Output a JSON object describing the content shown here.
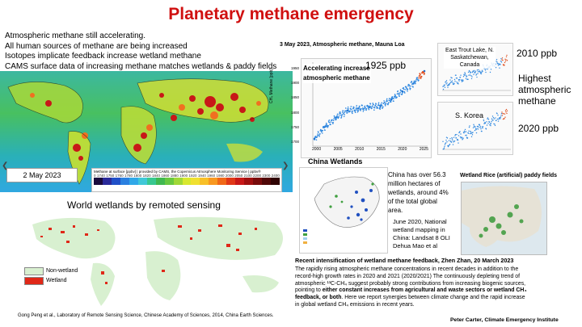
{
  "title": "Planetary methane emergency",
  "intro_lines": [
    "Atmospheric methane still accelerating.",
    "All human sources of methane are being increased",
    "Isotopes implicate feedback increase wetland methane",
    "CAMS surface data of increasing methane matches wetlands & paddy fields"
  ],
  "cams_map": {
    "date": "2 May 2023",
    "legend_title": "Methane at surface [ppbv] | provided by CAMS, the Copernicus Atmosphere Monitoring Service | ppbv®",
    "legend_ticks": [
      "0",
      "1740",
      "1750",
      "1760",
      "1780",
      "1800",
      "1820",
      "1840",
      "1860",
      "1880",
      "1900",
      "1920",
      "1940",
      "1960",
      "1980",
      "2000",
      "2050",
      "2100",
      "2200",
      "2300",
      "2400"
    ],
    "legend_colors": [
      "#1a0a3c",
      "#2a2a9a",
      "#2050c8",
      "#2a80e0",
      "#30a8e8",
      "#40c8d8",
      "#38c890",
      "#40b850",
      "#68c840",
      "#a0d838",
      "#d8e830",
      "#f0e030",
      "#f8c028",
      "#f89820",
      "#f06818",
      "#e03818",
      "#c81818",
      "#a01010",
      "#780c0c",
      "#500808",
      "#300404"
    ],
    "nav_prev": "❮",
    "nav_next": "❯"
  },
  "wetlands_map": {
    "heading": "World wetlands by remoted sensing",
    "legend": [
      "Non-wetland",
      "Wetland"
    ],
    "legend_colors": [
      "#d8f0d0",
      "#e02818"
    ],
    "credit": "Gong Peng et al., Laboratory of Remote Sensing Science, Chinese Academy of Sciences, 2014, China Earth Sciences."
  },
  "mauna_loa": {
    "caption": "3 May 2023, Atmospheric methane,  Mauna Loa",
    "label": "Accelerating increase atmospheric methane",
    "value": "1925 ppb",
    "y_axis_label": "CH₄ Methane [ppb]",
    "x_ticks": [
      "2000",
      "2005",
      "2010",
      "2015",
      "2020",
      "2025"
    ],
    "y_ticks": [
      "1700",
      "1750",
      "1800",
      "1850",
      "1900",
      "1950"
    ],
    "chart_data": {
      "type": "scatter",
      "x": [
        1983,
        1987,
        1991,
        1995,
        1999,
        2003,
        2007,
        2011,
        2015,
        2019,
        2023
      ],
      "y": [
        1625,
        1680,
        1720,
        1750,
        1760,
        1765,
        1770,
        1800,
        1835,
        1870,
        1925
      ],
      "ylim": [
        1600,
        1950
      ]
    }
  },
  "east_trout": {
    "label": "East Trout Lake, N. Saskatchewan, Canada",
    "value": "2010 ppb"
  },
  "korea": {
    "label": "S. Korea",
    "value": "2020 ppb"
  },
  "highest": "Highest atmospheric methane",
  "china": {
    "heading": "China Wetlands",
    "area_text": "China has over 56.3 million hectares of wetlands, around 4% of the total global area.",
    "mapping_text": "June 2020, National wetland mapping in China: Landsat 8 OLI Dehua Mao et al"
  },
  "paddy": {
    "heading": "Wetland Rice (artificial) paddy fields"
  },
  "feedback": {
    "heading": "Recent intensification of wetland methane feedback, Zhen Zhan, 20 March 2023",
    "body_1": "The rapidly rising atmospheric methane concentrations in recent decades in addition to the record-high growth rates in 2020 and 2021 (2020/2021) The continuously depleting trend of atmospheric ¹³C-CH₄ suggest probably strong contributions from increasing biogenic sources, pointing to ",
    "body_bold_1": "either constant increases from agricultural and waste sectors or wetland CH₄ feedback, or both",
    "body_2": ". Here we report synergies between climate change and the rapid increase in global wetland CH₄ emissions in recent years."
  },
  "footer": "Peter Carter, Climate Emergency Institute"
}
